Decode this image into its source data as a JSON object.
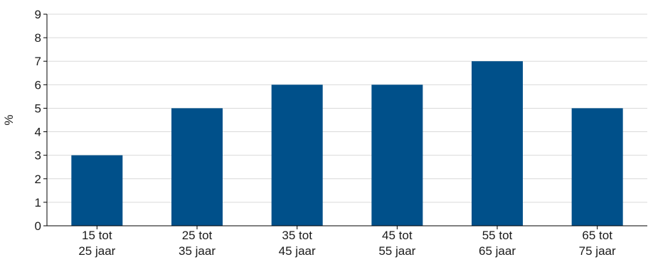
{
  "chart_data": {
    "type": "bar",
    "categories": [
      [
        "15 tot",
        "25 jaar"
      ],
      [
        "25 tot",
        "35 jaar"
      ],
      [
        "35 tot",
        "45 jaar"
      ],
      [
        "45 tot",
        "55 jaar"
      ],
      [
        "55 tot",
        "65 jaar"
      ],
      [
        "65 tot",
        "75 jaar"
      ]
    ],
    "values": [
      3,
      5,
      6,
      6,
      7,
      5
    ],
    "title": "",
    "xlabel": "",
    "ylabel": "%",
    "ylim": [
      0,
      9
    ],
    "yticks": [
      "0",
      "1",
      "2",
      "3",
      "4",
      "5",
      "6",
      "7",
      "8",
      "9"
    ],
    "grid": true,
    "bar_color": "#00508a",
    "grid_color": "#d9d9d9",
    "axis_color": "#000000"
  }
}
